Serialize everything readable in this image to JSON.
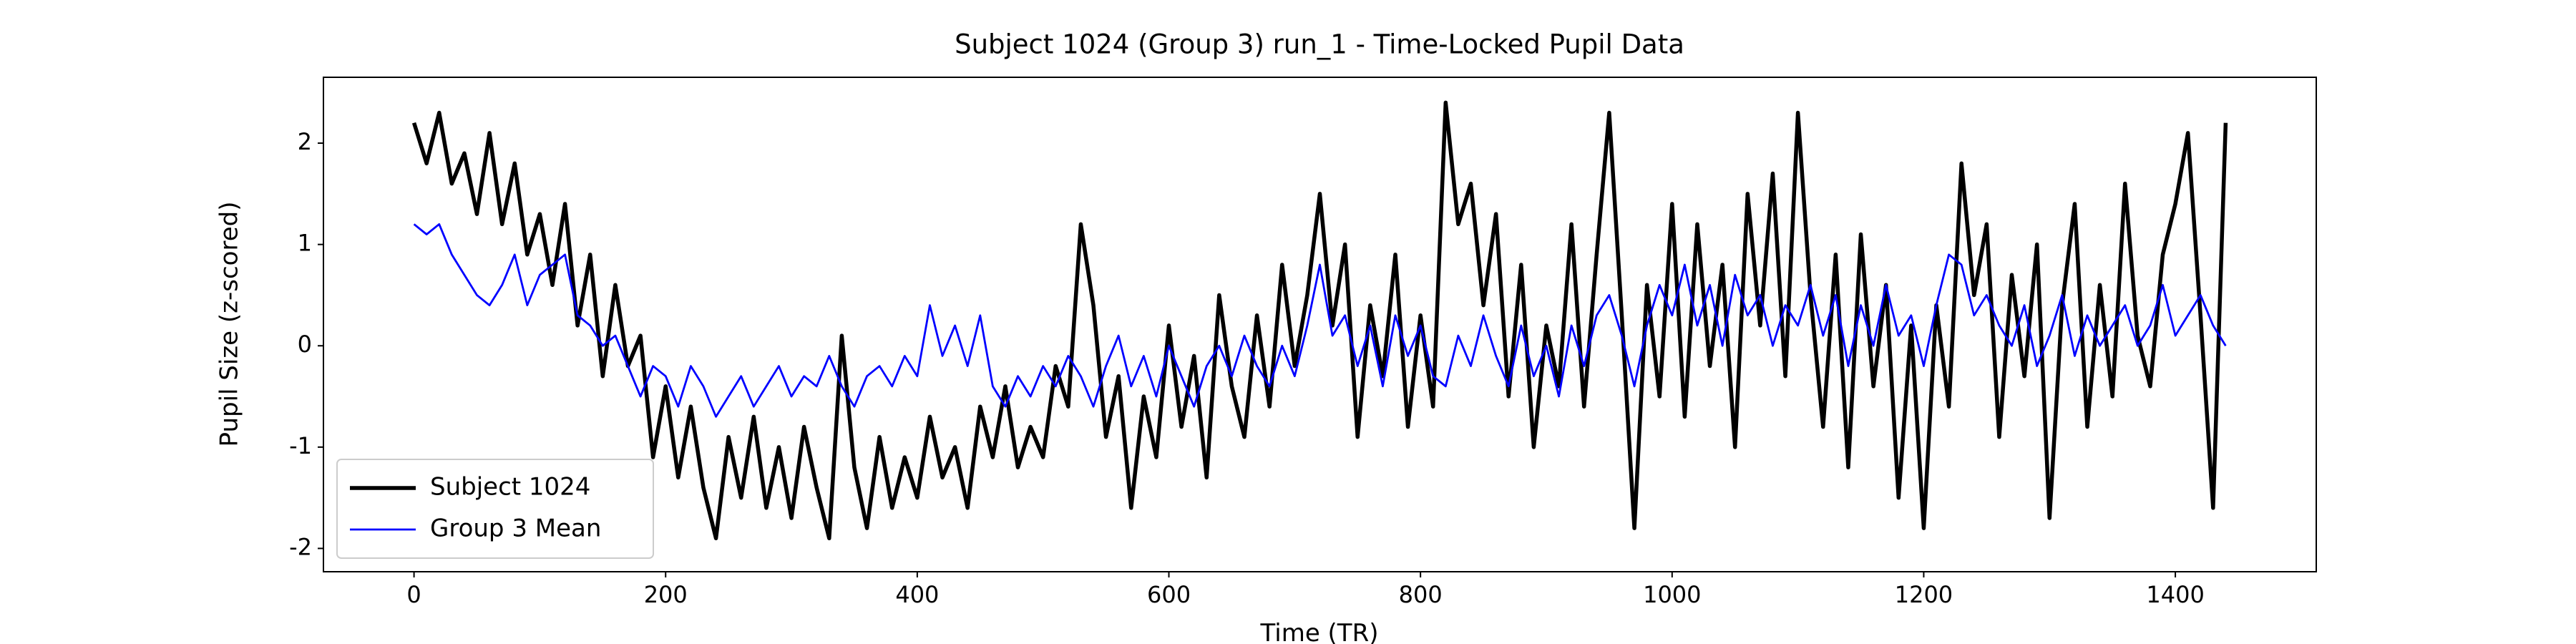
{
  "chart_data": {
    "type": "line",
    "title": "Subject 1024 (Group 3) run_1 - Time-Locked Pupil Data",
    "x_label": "Time (TR)",
    "y_label": "Pupil Size (z-scored)",
    "x": [
      0,
      10,
      20,
      30,
      40,
      50,
      60,
      70,
      80,
      90,
      100,
      110,
      120,
      130,
      140,
      150,
      160,
      170,
      180,
      190,
      200,
      210,
      220,
      230,
      240,
      250,
      260,
      270,
      280,
      290,
      300,
      310,
      320,
      330,
      340,
      350,
      360,
      370,
      380,
      390,
      400,
      410,
      420,
      430,
      440,
      450,
      460,
      470,
      480,
      490,
      500,
      510,
      520,
      530,
      540,
      550,
      560,
      570,
      580,
      590,
      600,
      610,
      620,
      630,
      640,
      650,
      660,
      670,
      680,
      690,
      700,
      710,
      720,
      730,
      740,
      750,
      760,
      770,
      780,
      790,
      800,
      810,
      820,
      830,
      840,
      850,
      860,
      870,
      880,
      890,
      900,
      910,
      920,
      930,
      940,
      950,
      960,
      970,
      980,
      990,
      1000,
      1010,
      1020,
      1030,
      1040,
      1050,
      1060,
      1070,
      1080,
      1090,
      1100,
      1110,
      1120,
      1130,
      1140,
      1150,
      1160,
      1170,
      1180,
      1190,
      1200,
      1210,
      1220,
      1230,
      1240,
      1250,
      1260,
      1270,
      1280,
      1290,
      1300,
      1310,
      1320,
      1330,
      1340,
      1350,
      1360,
      1370,
      1380,
      1390,
      1400,
      1410,
      1420,
      1430,
      1440
    ],
    "series": [
      {
        "name": "Subject 1024",
        "color": "#000000",
        "width": 5.5,
        "values": [
          2.2,
          1.8,
          2.3,
          1.6,
          1.9,
          1.3,
          2.1,
          1.2,
          1.8,
          0.9,
          1.3,
          0.6,
          1.4,
          0.2,
          0.9,
          -0.3,
          0.6,
          -0.2,
          0.1,
          -1.1,
          -0.4,
          -1.3,
          -0.6,
          -1.4,
          -1.9,
          -0.9,
          -1.5,
          -0.7,
          -1.6,
          -1.0,
          -1.7,
          -0.8,
          -1.4,
          -1.9,
          0.1,
          -1.2,
          -1.8,
          -0.9,
          -1.6,
          -1.1,
          -1.5,
          -0.7,
          -1.3,
          -1.0,
          -1.6,
          -0.6,
          -1.1,
          -0.4,
          -1.2,
          -0.8,
          -1.1,
          -0.2,
          -0.6,
          1.2,
          0.4,
          -0.9,
          -0.3,
          -1.6,
          -0.5,
          -1.1,
          0.2,
          -0.8,
          -0.1,
          -1.3,
          0.5,
          -0.4,
          -0.9,
          0.3,
          -0.6,
          0.8,
          -0.2,
          0.5,
          1.5,
          0.2,
          1.0,
          -0.9,
          0.4,
          -0.3,
          0.9,
          -0.8,
          0.3,
          -0.6,
          2.4,
          1.2,
          1.6,
          0.4,
          1.3,
          -0.5,
          0.8,
          -1.0,
          0.2,
          -0.4,
          1.2,
          -0.6,
          0.9,
          2.3,
          0.3,
          -1.8,
          0.6,
          -0.5,
          1.4,
          -0.7,
          1.2,
          -0.2,
          0.8,
          -1.0,
          1.5,
          0.2,
          1.7,
          -0.3,
          2.3,
          0.5,
          -0.8,
          0.9,
          -1.2,
          1.1,
          -0.4,
          0.6,
          -1.5,
          0.2,
          -1.8,
          0.4,
          -0.6,
          1.8,
          0.5,
          1.2,
          -0.9,
          0.7,
          -0.3,
          1.0,
          -1.7,
          0.4,
          1.4,
          -0.8,
          0.6,
          -0.5,
          1.6,
          0.1,
          -0.4,
          0.9,
          1.4,
          2.1,
          0.3,
          -1.6,
          2.2
        ]
      },
      {
        "name": "Group 3 Mean",
        "color": "#0000ff",
        "width": 2.8,
        "values": [
          1.2,
          1.1,
          1.2,
          0.9,
          0.7,
          0.5,
          0.4,
          0.6,
          0.9,
          0.4,
          0.7,
          0.8,
          0.9,
          0.3,
          0.2,
          0.0,
          0.1,
          -0.2,
          -0.5,
          -0.2,
          -0.3,
          -0.6,
          -0.2,
          -0.4,
          -0.7,
          -0.5,
          -0.3,
          -0.6,
          -0.4,
          -0.2,
          -0.5,
          -0.3,
          -0.4,
          -0.1,
          -0.4,
          -0.6,
          -0.3,
          -0.2,
          -0.4,
          -0.1,
          -0.3,
          0.4,
          -0.1,
          0.2,
          -0.2,
          0.3,
          -0.4,
          -0.6,
          -0.3,
          -0.5,
          -0.2,
          -0.4,
          -0.1,
          -0.3,
          -0.6,
          -0.2,
          0.1,
          -0.4,
          -0.1,
          -0.5,
          0.0,
          -0.3,
          -0.6,
          -0.2,
          0.0,
          -0.3,
          0.1,
          -0.2,
          -0.4,
          0.0,
          -0.3,
          0.2,
          0.8,
          0.1,
          0.3,
          -0.2,
          0.2,
          -0.4,
          0.3,
          -0.1,
          0.2,
          -0.3,
          -0.4,
          0.1,
          -0.2,
          0.3,
          -0.1,
          -0.4,
          0.2,
          -0.3,
          0.0,
          -0.5,
          0.2,
          -0.2,
          0.3,
          0.5,
          0.1,
          -0.4,
          0.2,
          0.6,
          0.3,
          0.8,
          0.2,
          0.6,
          0.0,
          0.7,
          0.3,
          0.5,
          0.0,
          0.4,
          0.2,
          0.6,
          0.1,
          0.5,
          -0.2,
          0.4,
          0.0,
          0.6,
          0.1,
          0.3,
          -0.2,
          0.4,
          0.9,
          0.8,
          0.3,
          0.5,
          0.2,
          0.0,
          0.4,
          -0.2,
          0.1,
          0.5,
          -0.1,
          0.3,
          0.0,
          0.2,
          0.4,
          0.0,
          0.2,
          0.6,
          0.1,
          0.3,
          0.5,
          0.2,
          0.0
        ]
      }
    ],
    "xlim": [
      -72,
      1512
    ],
    "ylim": [
      -2.23,
      2.65
    ],
    "xticks": [
      0,
      200,
      400,
      600,
      800,
      1000,
      1200,
      1400
    ],
    "yticks": [
      -2,
      -1,
      0,
      1,
      2
    ],
    "grid": false,
    "legend": "lower left"
  }
}
